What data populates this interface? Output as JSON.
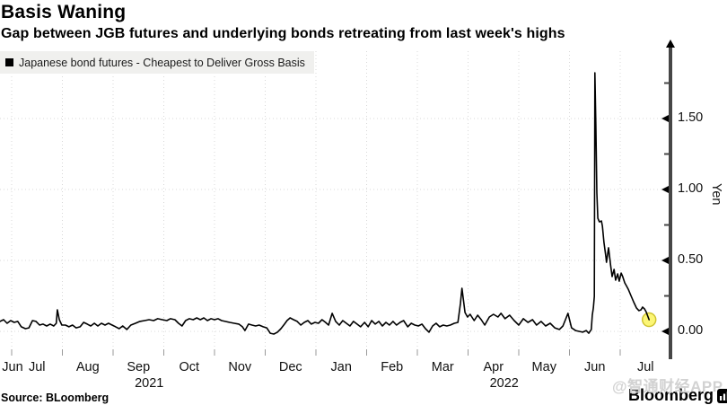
{
  "title": "Basis Waning",
  "subtitle": "Gap between JGB futures and underlying bonds retreating from last week's highs",
  "legend": {
    "marker": "black-square",
    "label": "Japanese bond futures - Cheapest to Deliver Gross Basis"
  },
  "source": "Source: BLoomberg",
  "watermark": "@智通财经APP",
  "brand": {
    "name": "Bloomberg",
    "logo": "bar-chart-icon"
  },
  "colors": {
    "line": "#000000",
    "grid": "#d8d8d8",
    "axis": "#464646",
    "legend_bg": "#f0f0ee",
    "end_marker_fill": "#fbf55e",
    "end_marker_stroke": "#cfc431",
    "watermark": "#d2d2d2"
  },
  "chart_data": {
    "type": "line",
    "title": "Basis Waning",
    "subtitle": "Gap between JGB futures and underlying bonds retreating from last week's highs",
    "ylabel": "Yen",
    "xlabel": "",
    "grid": "dotted",
    "legend_position": "top-left",
    "ylim": [
      -0.1,
      1.95
    ],
    "y_ticks": [
      0.0,
      0.5,
      1.0,
      1.5
    ],
    "y_tick_labels": [
      "0.00",
      "0.50",
      "1.00",
      "1.50"
    ],
    "y_minor_ticks": [
      0.25,
      0.75,
      1.25,
      1.75
    ],
    "x_axis": {
      "months": [
        "Jun",
        "Jul",
        "Aug",
        "Sep",
        "Oct",
        "Nov",
        "Dec",
        "Jan",
        "Feb",
        "Mar",
        "Apr",
        "May",
        "Jun",
        "Jul"
      ],
      "years": [
        {
          "label": "2021",
          "month_index": 3
        },
        {
          "label": "2022",
          "month_index": 10
        }
      ],
      "note": "t in data points = months after 2021-07-01; range shown 2021-06-24 to 2022-07-18"
    },
    "series": [
      {
        "name": "Japanese bond futures - Cheapest to Deliver Gross Basis",
        "color": "#000000",
        "points": [
          [
            -0.23,
            0.07
          ],
          [
            -0.16,
            0.082
          ],
          [
            -0.09,
            0.057
          ],
          [
            -0.02,
            0.076
          ],
          [
            0.05,
            0.063
          ],
          [
            0.12,
            0.07
          ],
          [
            0.19,
            0.032
          ],
          [
            0.27,
            0.019
          ],
          [
            0.34,
            0.025
          ],
          [
            0.41,
            0.076
          ],
          [
            0.48,
            0.07
          ],
          [
            0.55,
            0.044
          ],
          [
            0.62,
            0.051
          ],
          [
            0.69,
            0.038
          ],
          [
            0.76,
            0.051
          ],
          [
            0.83,
            0.038
          ],
          [
            0.88,
            0.057
          ],
          [
            0.9,
            0.152
          ],
          [
            0.94,
            0.082
          ],
          [
            0.99,
            0.044
          ],
          [
            1.06,
            0.044
          ],
          [
            1.13,
            0.032
          ],
          [
            1.2,
            0.044
          ],
          [
            1.27,
            0.025
          ],
          [
            1.35,
            0.032
          ],
          [
            1.42,
            0.063
          ],
          [
            1.49,
            0.051
          ],
          [
            1.56,
            0.038
          ],
          [
            1.63,
            0.057
          ],
          [
            1.7,
            0.038
          ],
          [
            1.77,
            0.057
          ],
          [
            1.84,
            0.044
          ],
          [
            1.91,
            0.057
          ],
          [
            1.98,
            0.044
          ],
          [
            2.05,
            0.032
          ],
          [
            2.12,
            0.019
          ],
          [
            2.19,
            0.038
          ],
          [
            2.27,
            0.013
          ],
          [
            2.35,
            0.044
          ],
          [
            2.44,
            0.057
          ],
          [
            2.53,
            0.07
          ],
          [
            2.62,
            0.076
          ],
          [
            2.71,
            0.082
          ],
          [
            2.8,
            0.076
          ],
          [
            2.88,
            0.089
          ],
          [
            2.97,
            0.082
          ],
          [
            3.06,
            0.076
          ],
          [
            3.13,
            0.089
          ],
          [
            3.22,
            0.082
          ],
          [
            3.29,
            0.057
          ],
          [
            3.36,
            0.038
          ],
          [
            3.43,
            0.076
          ],
          [
            3.5,
            0.089
          ],
          [
            3.58,
            0.082
          ],
          [
            3.65,
            0.095
          ],
          [
            3.72,
            0.082
          ],
          [
            3.79,
            0.095
          ],
          [
            3.86,
            0.076
          ],
          [
            3.93,
            0.089
          ],
          [
            4.0,
            0.082
          ],
          [
            4.07,
            0.089
          ],
          [
            4.14,
            0.076
          ],
          [
            4.21,
            0.07
          ],
          [
            4.3,
            0.063
          ],
          [
            4.39,
            0.057
          ],
          [
            4.48,
            0.051
          ],
          [
            4.55,
            0.032
          ],
          [
            4.6,
            0.006
          ],
          [
            4.67,
            0.051
          ],
          [
            4.74,
            0.044
          ],
          [
            4.81,
            0.038
          ],
          [
            4.88,
            0.044
          ],
          [
            4.96,
            0.032
          ],
          [
            5.03,
            0.025
          ],
          [
            5.1,
            -0.013
          ],
          [
            5.17,
            -0.019
          ],
          [
            5.24,
            -0.006
          ],
          [
            5.31,
            0.019
          ],
          [
            5.38,
            0.051
          ],
          [
            5.43,
            0.076
          ],
          [
            5.49,
            0.095
          ],
          [
            5.56,
            0.082
          ],
          [
            5.63,
            0.07
          ],
          [
            5.7,
            0.044
          ],
          [
            5.77,
            0.063
          ],
          [
            5.84,
            0.076
          ],
          [
            5.91,
            0.051
          ],
          [
            5.98,
            0.063
          ],
          [
            6.05,
            0.057
          ],
          [
            6.12,
            0.082
          ],
          [
            6.19,
            0.063
          ],
          [
            6.25,
            0.044
          ],
          [
            6.32,
            0.127
          ],
          [
            6.39,
            0.07
          ],
          [
            6.46,
            0.044
          ],
          [
            6.53,
            0.076
          ],
          [
            6.6,
            0.057
          ],
          [
            6.67,
            0.038
          ],
          [
            6.74,
            0.07
          ],
          [
            6.81,
            0.051
          ],
          [
            6.88,
            0.032
          ],
          [
            6.96,
            0.063
          ],
          [
            7.03,
            0.032
          ],
          [
            7.1,
            0.076
          ],
          [
            7.17,
            0.051
          ],
          [
            7.24,
            0.07
          ],
          [
            7.31,
            0.038
          ],
          [
            7.38,
            0.063
          ],
          [
            7.45,
            0.044
          ],
          [
            7.52,
            0.07
          ],
          [
            7.59,
            0.044
          ],
          [
            7.66,
            0.063
          ],
          [
            7.73,
            0.076
          ],
          [
            7.81,
            0.032
          ],
          [
            7.88,
            0.057
          ],
          [
            7.95,
            0.044
          ],
          [
            8.02,
            0.038
          ],
          [
            8.09,
            0.051
          ],
          [
            8.16,
            0.019
          ],
          [
            8.23,
            -0.006
          ],
          [
            8.3,
            0.038
          ],
          [
            8.37,
            0.057
          ],
          [
            8.44,
            0.032
          ],
          [
            8.51,
            0.044
          ],
          [
            8.58,
            0.038
          ],
          [
            8.65,
            0.044
          ],
          [
            8.73,
            0.057
          ],
          [
            8.8,
            0.063
          ],
          [
            8.85,
            0.196
          ],
          [
            8.88,
            0.304
          ],
          [
            8.94,
            0.133
          ],
          [
            8.99,
            0.101
          ],
          [
            9.04,
            0.12
          ],
          [
            9.12,
            0.076
          ],
          [
            9.19,
            0.114
          ],
          [
            9.26,
            0.082
          ],
          [
            9.33,
            0.044
          ],
          [
            9.42,
            0.101
          ],
          [
            9.5,
            0.12
          ],
          [
            9.59,
            0.101
          ],
          [
            9.65,
            0.127
          ],
          [
            9.73,
            0.089
          ],
          [
            9.82,
            0.114
          ],
          [
            9.91,
            0.076
          ],
          [
            10.0,
            0.044
          ],
          [
            10.09,
            0.089
          ],
          [
            10.18,
            0.063
          ],
          [
            10.27,
            0.082
          ],
          [
            10.35,
            0.044
          ],
          [
            10.44,
            0.07
          ],
          [
            10.53,
            0.038
          ],
          [
            10.62,
            0.057
          ],
          [
            10.71,
            0.025
          ],
          [
            10.8,
            0.013
          ],
          [
            10.87,
            0.038
          ],
          [
            10.92,
            0.082
          ],
          [
            10.97,
            0.127
          ],
          [
            11.04,
            0.025
          ],
          [
            11.12,
            0.006
          ],
          [
            11.19,
            0.0
          ],
          [
            11.26,
            -0.006
          ],
          [
            11.33,
            0.006
          ],
          [
            11.38,
            -0.013
          ],
          [
            11.43,
            0.013
          ],
          [
            11.45,
            0.114
          ],
          [
            11.47,
            0.165
          ],
          [
            11.49,
            0.247
          ],
          [
            11.5,
            1.823
          ],
          [
            11.52,
            1.449
          ],
          [
            11.54,
            0.975
          ],
          [
            11.56,
            0.797
          ],
          [
            11.59,
            0.772
          ],
          [
            11.63,
            0.778
          ],
          [
            11.65,
            0.741
          ],
          [
            11.68,
            0.627
          ],
          [
            11.72,
            0.519
          ],
          [
            11.73,
            0.487
          ],
          [
            11.77,
            0.589
          ],
          [
            11.81,
            0.468
          ],
          [
            11.84,
            0.386
          ],
          [
            11.88,
            0.437
          ],
          [
            11.91,
            0.361
          ],
          [
            11.95,
            0.405
          ],
          [
            11.98,
            0.354
          ],
          [
            12.02,
            0.411
          ],
          [
            12.05,
            0.386
          ],
          [
            12.09,
            0.342
          ],
          [
            12.12,
            0.323
          ],
          [
            12.16,
            0.297
          ],
          [
            12.21,
            0.253
          ],
          [
            12.27,
            0.203
          ],
          [
            12.32,
            0.165
          ],
          [
            12.37,
            0.146
          ],
          [
            12.41,
            0.152
          ],
          [
            12.44,
            0.171
          ],
          [
            12.48,
            0.158
          ],
          [
            12.51,
            0.139
          ],
          [
            12.57,
            0.082
          ]
        ]
      }
    ],
    "annotations": [
      {
        "type": "end_marker",
        "shape": "circle",
        "value": 0.082,
        "color": "#fbf55e"
      }
    ],
    "peak_value": 1.82,
    "last_value": 0.08
  }
}
